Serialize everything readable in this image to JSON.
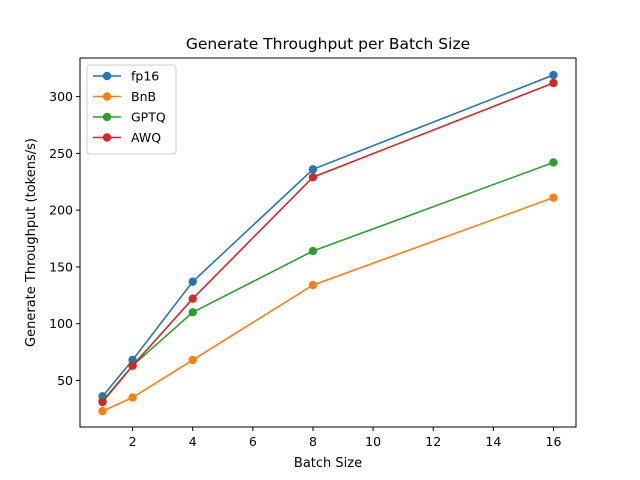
{
  "chart_data": {
    "type": "line",
    "title": "Generate Throughput per Batch Size",
    "xlabel": "Batch Size",
    "ylabel": "Generate Throughput (tokens/s)",
    "x": [
      1,
      2,
      4,
      8,
      16
    ],
    "xlim": [
      0.25,
      16.75
    ],
    "ylim": [
      9,
      334
    ],
    "xticks": [
      2,
      4,
      6,
      8,
      10,
      12,
      14,
      16
    ],
    "yticks": [
      50,
      100,
      150,
      200,
      250,
      300
    ],
    "grid": false,
    "legend_position": "top-left",
    "series": [
      {
        "name": "fp16",
        "color": "#1f77b4",
        "values": [
          36,
          68,
          137,
          236,
          319
        ]
      },
      {
        "name": "BnB",
        "color": "#ff7f0e",
        "values": [
          23,
          35,
          68,
          134,
          211
        ]
      },
      {
        "name": "GPTQ",
        "color": "#2ca02c",
        "values": [
          32,
          63,
          110,
          164,
          242
        ]
      },
      {
        "name": "AWQ",
        "color": "#d62728",
        "values": [
          31,
          63,
          122,
          229,
          312
        ]
      }
    ]
  }
}
